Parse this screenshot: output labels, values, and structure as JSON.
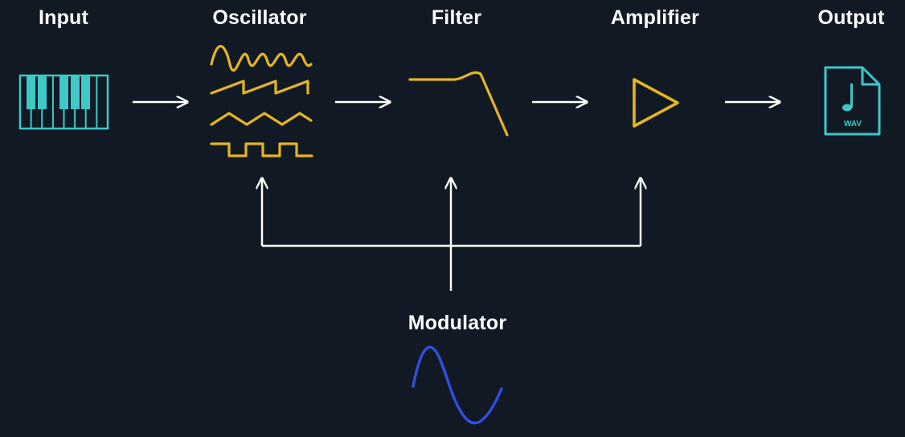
{
  "stages": {
    "input": "Input",
    "oscillator": "Oscillator",
    "filter": "Filter",
    "amplifier": "Amplifier",
    "output": "Output"
  },
  "modulator": "Modulator",
  "file_badge": "WAV",
  "colors": {
    "background": "#111a24",
    "signal_icons": "#e6b521",
    "io_icons": "#3ec8c8",
    "arrows": "#ffffff",
    "modulator_wave": "#2f4fe0"
  },
  "icons": {
    "input": "piano-keyboard-icon",
    "oscillator": "waveforms-icon",
    "filter": "lowpass-filter-curve-icon",
    "amplifier": "play-triangle-icon",
    "output": "wav-file-icon",
    "modulator": "sine-wave-icon"
  }
}
